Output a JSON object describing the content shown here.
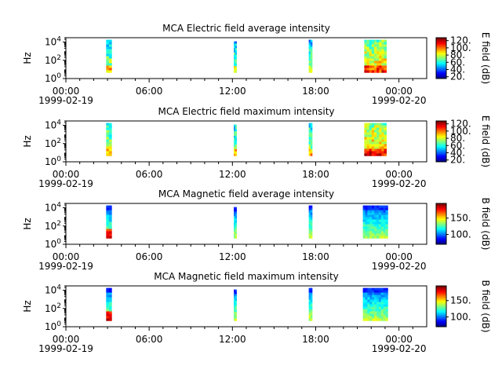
{
  "figure": {
    "time_ticks": [
      "00:00",
      "06:00",
      "12:00",
      "18:00",
      "00:00"
    ],
    "date_start": "1999-02-19",
    "date_end": "1999-02-20",
    "y_ticks": [
      "10^0",
      "10^2",
      "10^4"
    ]
  },
  "chart_data": [
    {
      "type": "heatmap",
      "title": "MCA  Electric field average intensity",
      "ylabel": "Hz",
      "y_scale": "log",
      "ylim": [
        1,
        30000
      ],
      "xlim_hours": [
        0,
        26
      ],
      "colorbar": {
        "label": "E field (dB)",
        "ticks": [
          "20.",
          "40.",
          "60.",
          "80.",
          "100.",
          "120."
        ],
        "range": [
          15,
          128
        ]
      },
      "bursts": [
        {
          "start_hour": 2.9,
          "end_hour": 3.3,
          "freq_max": 18000,
          "level": 0.55
        },
        {
          "start_hour": 12.1,
          "end_hour": 12.3,
          "freq_max": 12000,
          "level": 0.5
        },
        {
          "start_hour": 17.5,
          "end_hour": 17.75,
          "freq_max": 18000,
          "level": 0.5
        },
        {
          "start_hour": 21.5,
          "end_hour": 23.1,
          "freq_max": 18000,
          "level": 0.68
        }
      ]
    },
    {
      "type": "heatmap",
      "title": "MCA  Electric field maximum intensity",
      "ylabel": "Hz",
      "y_scale": "log",
      "ylim": [
        1,
        30000
      ],
      "xlim_hours": [
        0,
        26
      ],
      "colorbar": {
        "label": "E field (dB)",
        "ticks": [
          "20.",
          "40.",
          "60.",
          "80.",
          "100.",
          "120."
        ],
        "range": [
          15,
          128
        ]
      },
      "bursts": [
        {
          "start_hour": 2.9,
          "end_hour": 3.3,
          "freq_max": 18000,
          "level": 0.6
        },
        {
          "start_hour": 12.1,
          "end_hour": 12.3,
          "freq_max": 12000,
          "level": 0.55
        },
        {
          "start_hour": 17.5,
          "end_hour": 17.75,
          "freq_max": 18000,
          "level": 0.55
        },
        {
          "start_hour": 21.5,
          "end_hour": 23.1,
          "freq_max": 18000,
          "level": 0.72
        }
      ]
    },
    {
      "type": "heatmap",
      "title": "MCA  Magnetic field average intensity",
      "ylabel": "Hz",
      "y_scale": "log",
      "ylim": [
        1,
        30000
      ],
      "xlim_hours": [
        0,
        26
      ],
      "colorbar": {
        "label": "B field (dB)",
        "ticks": [
          "100.",
          "150."
        ],
        "range": [
          70,
          195
        ]
      },
      "bursts": [
        {
          "start_hour": 2.9,
          "end_hour": 3.3,
          "freq_max": 18000,
          "level": 0.45
        },
        {
          "start_hour": 12.1,
          "end_hour": 12.3,
          "freq_max": 12000,
          "level": 0.45
        },
        {
          "start_hour": 17.5,
          "end_hour": 17.75,
          "freq_max": 18000,
          "level": 0.45
        },
        {
          "start_hour": 21.4,
          "end_hour": 23.2,
          "freq_max": 18000,
          "level": 0.42
        }
      ]
    },
    {
      "type": "heatmap",
      "title": "MCA  Magnetic field maximum intensity",
      "ylabel": "Hz",
      "y_scale": "log",
      "ylim": [
        1,
        30000
      ],
      "xlim_hours": [
        0,
        26
      ],
      "colorbar": {
        "label": "B field (dB)",
        "ticks": [
          "100.",
          "150."
        ],
        "range": [
          70,
          195
        ]
      },
      "bursts": [
        {
          "start_hour": 2.9,
          "end_hour": 3.3,
          "freq_max": 18000,
          "level": 0.5
        },
        {
          "start_hour": 12.1,
          "end_hour": 12.3,
          "freq_max": 12000,
          "level": 0.5
        },
        {
          "start_hour": 17.5,
          "end_hour": 17.75,
          "freq_max": 18000,
          "level": 0.5
        },
        {
          "start_hour": 21.4,
          "end_hour": 23.2,
          "freq_max": 18000,
          "level": 0.45
        }
      ]
    }
  ]
}
